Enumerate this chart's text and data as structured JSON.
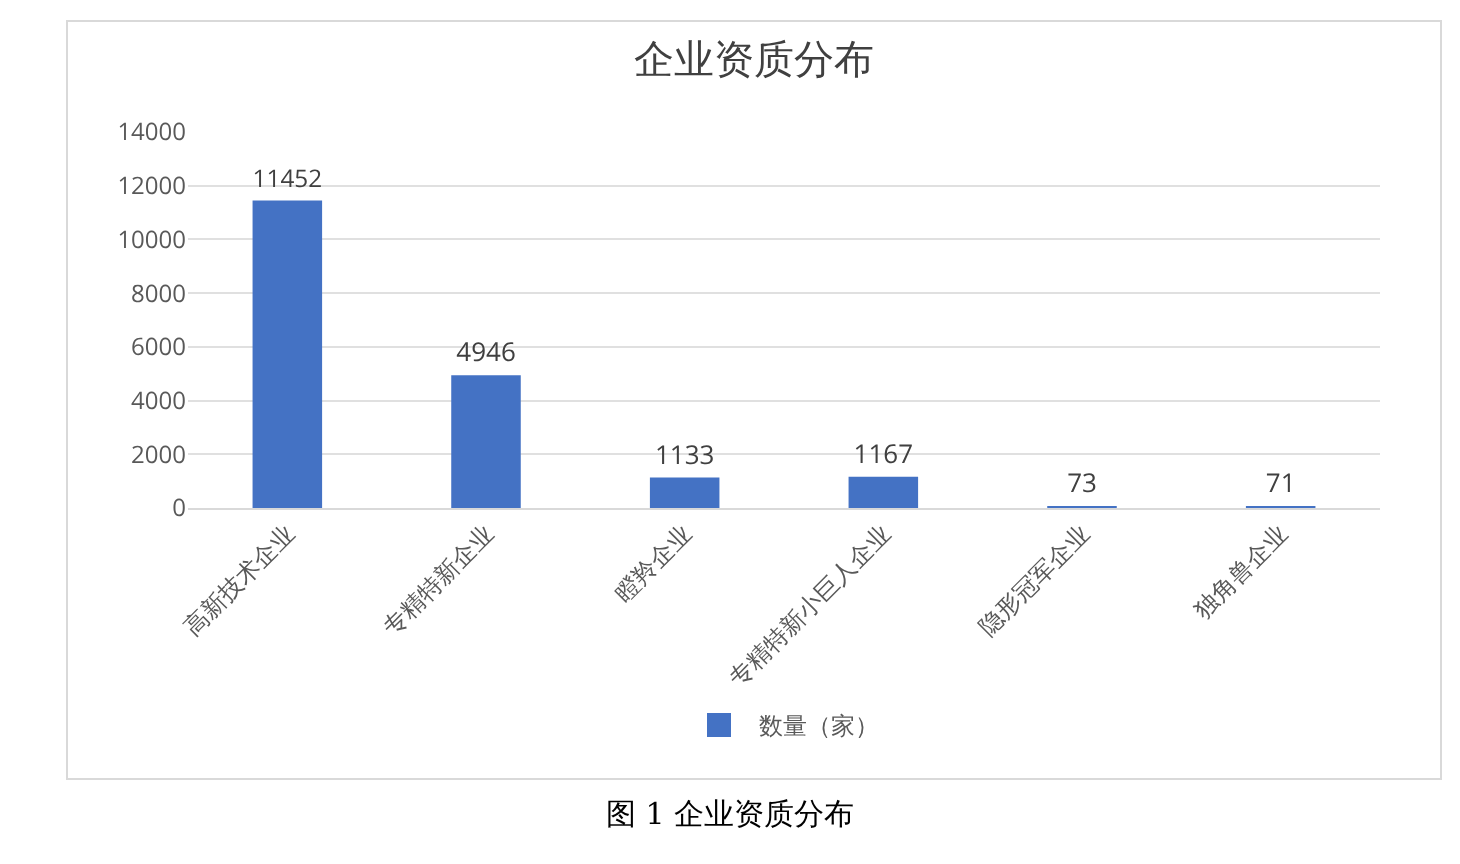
{
  "chart_data": {
    "type": "bar",
    "title": "企业资质分布",
    "categories": [
      "高新技术企业",
      "专精特新企业",
      "瞪羚企业",
      "专精特新小巨人企业",
      "隐形冠军企业",
      "独角兽企业"
    ],
    "series": [
      {
        "name": "数量（家）",
        "color": "#4472c4",
        "values": [
          11452,
          4946,
          1133,
          1167,
          73,
          71
        ]
      }
    ],
    "ylim": [
      0,
      14000
    ],
    "yticks": [
      0,
      2000,
      4000,
      6000,
      8000,
      10000,
      12000,
      14000
    ],
    "grid": "y",
    "legend": "bottom",
    "data_labels": true,
    "annotations": [
      "图 1 企业资质分布"
    ]
  }
}
